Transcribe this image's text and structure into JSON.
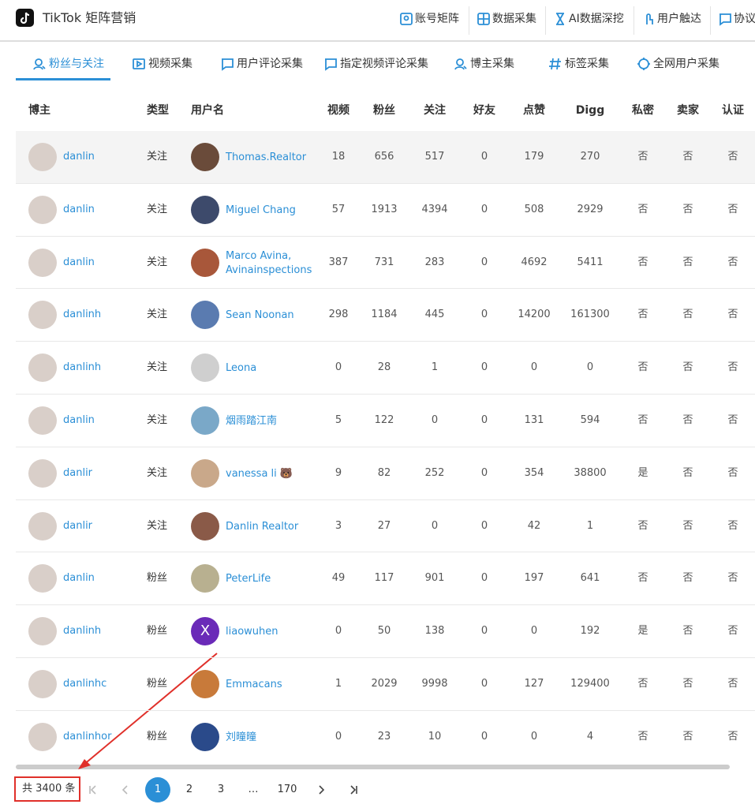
{
  "header": {
    "app_title": "TikTok 矩阵营销",
    "nav": [
      "账号矩阵",
      "数据采集",
      "AI数据深挖",
      "用户触达",
      "协议"
    ]
  },
  "tabs": {
    "items": [
      "粉丝与关注",
      "视频采集",
      "用户评论采集",
      "指定视频评论采集",
      "博主采集",
      "标签采集",
      "全网用户采集"
    ],
    "active": 0
  },
  "table": {
    "columns": [
      "博主",
      "类型",
      "用户名",
      "视频",
      "粉丝",
      "关注",
      "好友",
      "点赞",
      "Digg",
      "私密",
      "卖家",
      "认证"
    ],
    "rows": [
      {
        "blogger": "danlin",
        "type": "关注",
        "user": "Thomas.Realtor",
        "videos": 18,
        "fans": 656,
        "follows": 517,
        "friends": 0,
        "likes": 179,
        "digg": 270,
        "private": "否",
        "seller": "否",
        "verified": "否"
      },
      {
        "blogger": "danlin",
        "type": "关注",
        "user": "Miguel Chang",
        "videos": 57,
        "fans": 1913,
        "follows": 4394,
        "friends": 0,
        "likes": 508,
        "digg": 2929,
        "private": "否",
        "seller": "否",
        "verified": "否"
      },
      {
        "blogger": "danlin",
        "type": "关注",
        "user": "Marco Avina, Avinainspections",
        "videos": 387,
        "fans": 731,
        "follows": 283,
        "friends": 0,
        "likes": 4692,
        "digg": 5411,
        "private": "否",
        "seller": "否",
        "verified": "否"
      },
      {
        "blogger": "danlinh",
        "type": "关注",
        "user": "Sean  Noonan",
        "videos": 298,
        "fans": 1184,
        "follows": 445,
        "friends": 0,
        "likes": 14200,
        "digg": 161300,
        "private": "否",
        "seller": "否",
        "verified": "否"
      },
      {
        "blogger": "danlinh",
        "type": "关注",
        "user": "Leona",
        "videos": 0,
        "fans": 28,
        "follows": 1,
        "friends": 0,
        "likes": 0,
        "digg": 0,
        "private": "否",
        "seller": "否",
        "verified": "否"
      },
      {
        "blogger": "danlin",
        "type": "关注",
        "user": "烟雨踏江南",
        "videos": 5,
        "fans": 122,
        "follows": 0,
        "friends": 0,
        "likes": 131,
        "digg": 594,
        "private": "否",
        "seller": "否",
        "verified": "否"
      },
      {
        "blogger": "danlir",
        "type": "关注",
        "user": "vanessa li 🐻",
        "videos": 9,
        "fans": 82,
        "follows": 252,
        "friends": 0,
        "likes": 354,
        "digg": 38800,
        "private": "是",
        "seller": "否",
        "verified": "否"
      },
      {
        "blogger": "danlir",
        "type": "关注",
        "user": "Danlin Realtor",
        "videos": 3,
        "fans": 27,
        "follows": 0,
        "friends": 0,
        "likes": 42,
        "digg": 1,
        "private": "否",
        "seller": "否",
        "verified": "否"
      },
      {
        "blogger": "danlin",
        "type": "粉丝",
        "user": "PeterLife",
        "videos": 49,
        "fans": 117,
        "follows": 901,
        "friends": 0,
        "likes": 197,
        "digg": 641,
        "private": "否",
        "seller": "否",
        "verified": "否"
      },
      {
        "blogger": "danlinh",
        "type": "粉丝",
        "user": "liaowuhen",
        "avatar_label": "X",
        "videos": 0,
        "fans": 50,
        "follows": 138,
        "friends": 0,
        "likes": 0,
        "digg": 192,
        "private": "是",
        "seller": "否",
        "verified": "否"
      },
      {
        "blogger": "danlinhc",
        "type": "粉丝",
        "user": "Emmacans",
        "videos": 1,
        "fans": 2029,
        "follows": 9998,
        "friends": 0,
        "likes": 127,
        "digg": 129400,
        "private": "否",
        "seller": "否",
        "verified": "否"
      },
      {
        "blogger": "danlinhor",
        "type": "粉丝",
        "user": "刘曈曈",
        "videos": 0,
        "fans": 23,
        "follows": 10,
        "friends": 0,
        "likes": 0,
        "digg": 4,
        "private": "否",
        "seller": "否",
        "verified": "否"
      }
    ]
  },
  "pagination": {
    "total": "共 3400 条",
    "pages": [
      "1",
      "2",
      "3",
      "…",
      "170"
    ],
    "current": 0
  }
}
